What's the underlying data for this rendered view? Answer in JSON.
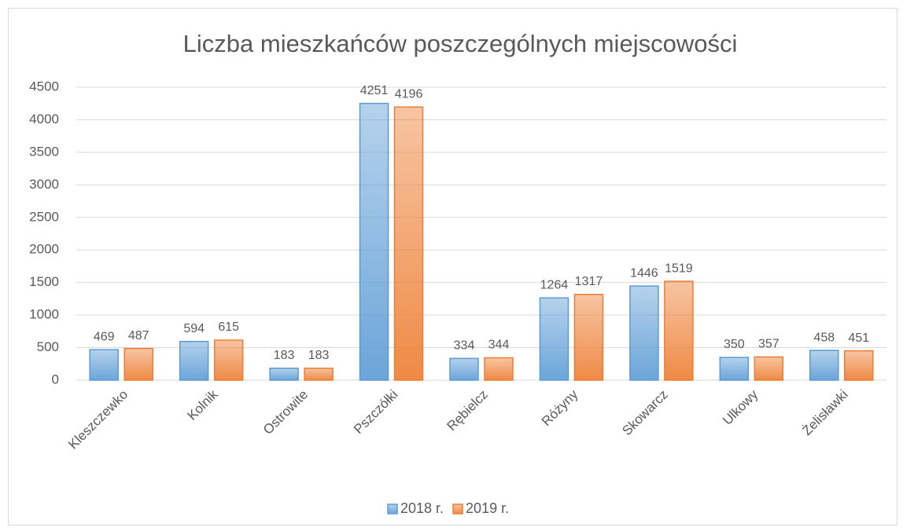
{
  "chart_data": {
    "type": "bar",
    "title": "Liczba mieszkańców poszczególnych miejscowości",
    "categories": [
      "Kleszczewko",
      "Kolnik",
      "Ostrowite",
      "Pszczółki",
      "Rębielcz",
      "Różyny",
      "Skowarcz",
      "Ulkowy",
      "Żelisławki"
    ],
    "series": [
      {
        "name": "2018 r.",
        "color": "#5b9bd5",
        "values": [
          469,
          594,
          183,
          4251,
          334,
          1264,
          1446,
          350,
          458
        ]
      },
      {
        "name": "2019 r.",
        "color": "#ed7d31",
        "values": [
          487,
          615,
          183,
          4196,
          344,
          1317,
          1519,
          357,
          451
        ]
      }
    ],
    "ylim": [
      0,
      4500
    ],
    "yticks": [
      0,
      500,
      1000,
      1500,
      2000,
      2500,
      3000,
      3500,
      4000,
      4500
    ],
    "grid": true,
    "legend": "bottom"
  }
}
